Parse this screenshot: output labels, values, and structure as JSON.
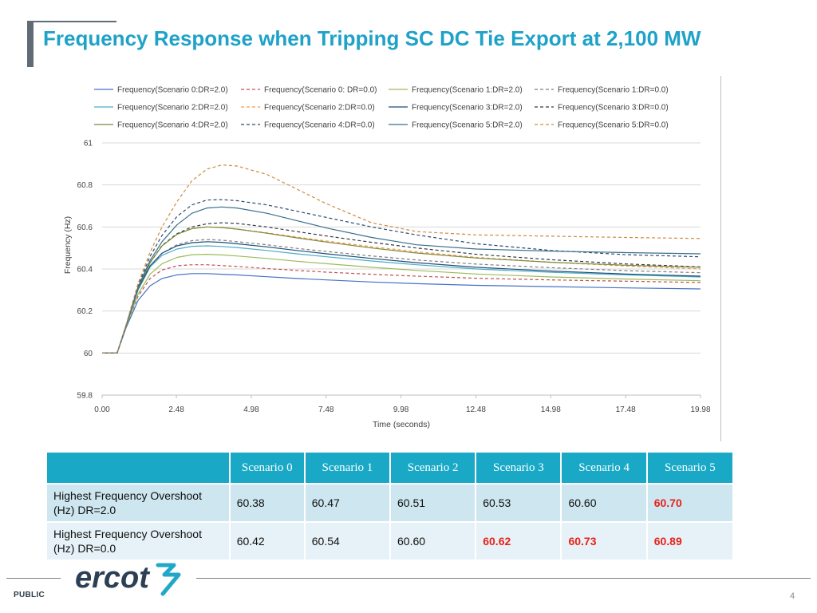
{
  "slide": {
    "title": "Frequency Response when Tripping SC DC Tie Export at 2,100 MW",
    "footer_label": "PUBLIC",
    "page_number": "4",
    "logo_text": "ercot"
  },
  "colors": {
    "title": "#1fa2c8",
    "table_header": "#19a9c7",
    "row_odd": "#cde6ef",
    "row_even": "#e6f2f7",
    "highlight": "#e8221b"
  },
  "chart_data": {
    "type": "line",
    "xlabel": "Time (seconds)",
    "ylabel": "Frequency (Hz)",
    "ylim": [
      59.8,
      61
    ],
    "yticks": [
      "59.8",
      "60",
      "60.2",
      "60.4",
      "60.6",
      "60.8",
      "61"
    ],
    "xlim": [
      0,
      19.98
    ],
    "xticks": [
      "0.00",
      "2.48",
      "4.98",
      "7.48",
      "9.98",
      "12.48",
      "14.98",
      "17.48",
      "19.98"
    ],
    "legend_position": "top",
    "grid": "horizontal",
    "x": [
      0,
      0.5,
      0.8,
      1.2,
      1.6,
      2.0,
      2.5,
      3.0,
      3.5,
      4.0,
      4.5,
      5.5,
      6.5,
      7.5,
      9.0,
      10.5,
      12.5,
      15.0,
      17.5,
      19.98
    ],
    "series": [
      {
        "name": "Frequency(Scenario 0:DR=2.0)",
        "color": "#4472c4",
        "dash": "",
        "values": [
          60.0,
          60.0,
          60.12,
          60.25,
          60.32,
          60.355,
          60.372,
          60.378,
          60.378,
          60.375,
          60.372,
          60.363,
          60.355,
          60.348,
          60.338,
          60.33,
          60.322,
          60.316,
          60.31,
          60.305
        ]
      },
      {
        "name": "Frequency(Scenario 0: DR=0.0)",
        "color": "#c0504d",
        "dash": "4,3",
        "values": [
          60.0,
          60.0,
          60.125,
          60.27,
          60.355,
          60.395,
          60.415,
          60.42,
          60.42,
          60.416,
          60.412,
          60.402,
          60.393,
          60.385,
          60.375,
          60.366,
          60.356,
          60.348,
          60.342,
          60.336
        ]
      },
      {
        "name": "Frequency(Scenario 1:DR=2.0)",
        "color": "#9bbb59",
        "dash": "",
        "values": [
          60.0,
          60.0,
          60.125,
          60.28,
          60.375,
          60.425,
          60.455,
          60.468,
          60.47,
          60.467,
          60.462,
          60.45,
          60.437,
          60.425,
          60.408,
          60.393,
          60.376,
          60.362,
          60.352,
          60.344
        ]
      },
      {
        "name": "Frequency(Scenario 1:DR=0.0)",
        "color": "#7f7f7f",
        "dash": "4,3",
        "values": [
          60.0,
          60.0,
          60.13,
          60.3,
          60.41,
          60.475,
          60.515,
          60.535,
          60.54,
          60.537,
          60.53,
          60.515,
          60.498,
          60.483,
          60.462,
          60.443,
          60.423,
          60.406,
          60.392,
          60.382
        ]
      },
      {
        "name": "Frequency(Scenario 2:DR=2.0)",
        "color": "#4bacc6",
        "dash": "",
        "values": [
          60.0,
          60.0,
          60.13,
          60.3,
          60.41,
          60.465,
          60.495,
          60.508,
          60.51,
          60.507,
          60.502,
          60.488,
          60.472,
          60.458,
          60.438,
          60.42,
          60.4,
          60.384,
          60.372,
          60.362
        ]
      },
      {
        "name": "Frequency(Scenario 2:DR=0.0)",
        "color": "#f79646",
        "dash": "4,3",
        "values": [
          60.0,
          60.0,
          60.13,
          60.31,
          60.43,
          60.51,
          60.565,
          60.592,
          60.6,
          60.597,
          60.59,
          60.572,
          60.552,
          60.533,
          60.506,
          60.482,
          60.455,
          60.432,
          60.414,
          60.4
        ]
      },
      {
        "name": "Frequency(Scenario 3:DR=2.0)",
        "color": "#1f4e79",
        "dash": "",
        "values": [
          60.0,
          60.0,
          60.13,
          60.305,
          60.415,
          60.475,
          60.51,
          60.525,
          60.53,
          60.527,
          60.52,
          60.505,
          60.488,
          60.472,
          60.45,
          60.43,
          60.408,
          60.39,
          60.376,
          60.366
        ]
      },
      {
        "name": "Frequency(Scenario 3:DR=0.0)",
        "color": "#2f3b4b",
        "dash": "4,3",
        "values": [
          60.0,
          60.0,
          60.13,
          60.31,
          60.43,
          60.512,
          60.568,
          60.6,
          60.615,
          60.62,
          60.617,
          60.6,
          60.578,
          60.557,
          60.527,
          60.5,
          60.47,
          60.444,
          60.424,
          60.41
        ]
      },
      {
        "name": "Frequency(Scenario 4:DR=2.0)",
        "color": "#7b8a3a",
        "dash": "",
        "values": [
          60.0,
          60.0,
          60.13,
          60.31,
          60.43,
          60.51,
          60.565,
          60.592,
          60.6,
          60.597,
          60.59,
          60.57,
          60.548,
          60.528,
          60.5,
          60.476,
          60.452,
          60.432,
          60.418,
          60.408
        ]
      },
      {
        "name": "Frequency(Scenario 4:DR=0.0)",
        "color": "#2e4a6b",
        "dash": "4,3",
        "values": [
          60.0,
          60.0,
          60.13,
          60.32,
          60.46,
          60.56,
          60.65,
          60.705,
          60.728,
          60.73,
          60.725,
          60.705,
          60.675,
          60.645,
          60.6,
          60.562,
          60.52,
          60.488,
          60.468,
          60.458
        ]
      },
      {
        "name": "Frequency(Scenario 5:DR=2.0)",
        "color": "#3a6f8f",
        "dash": "",
        "values": [
          60.0,
          60.0,
          60.13,
          60.315,
          60.44,
          60.53,
          60.61,
          60.665,
          60.69,
          60.695,
          60.69,
          60.665,
          60.63,
          60.595,
          60.55,
          60.515,
          60.495,
          60.485,
          60.478,
          60.472
        ]
      },
      {
        "name": "Frequency(Scenario 5:DR=0.0)",
        "color": "#d08a3e",
        "dash": "4,3",
        "values": [
          60.0,
          60.0,
          60.135,
          60.33,
          60.48,
          60.6,
          60.72,
          60.82,
          60.875,
          60.895,
          60.89,
          60.85,
          60.78,
          60.71,
          60.62,
          60.578,
          60.562,
          60.556,
          60.55,
          60.545
        ]
      }
    ]
  },
  "table": {
    "corner": "",
    "headers": [
      "Scenario 0",
      "Scenario 1",
      "Scenario 2",
      "Scenario 3",
      "Scenario 4",
      "Scenario 5"
    ],
    "rows": [
      {
        "label": "Highest Frequency Overshoot (Hz) DR=2.0",
        "values": [
          "60.38",
          "60.47",
          "60.51",
          "60.53",
          "60.60",
          "60.70"
        ],
        "highlight": [
          false,
          false,
          false,
          false,
          false,
          true
        ]
      },
      {
        "label": "Highest Frequency Overshoot (Hz) DR=0.0",
        "values": [
          "60.42",
          "60.54",
          "60.60",
          "60.62",
          "60.73",
          "60.89"
        ],
        "highlight": [
          false,
          false,
          false,
          true,
          true,
          true
        ]
      }
    ]
  }
}
